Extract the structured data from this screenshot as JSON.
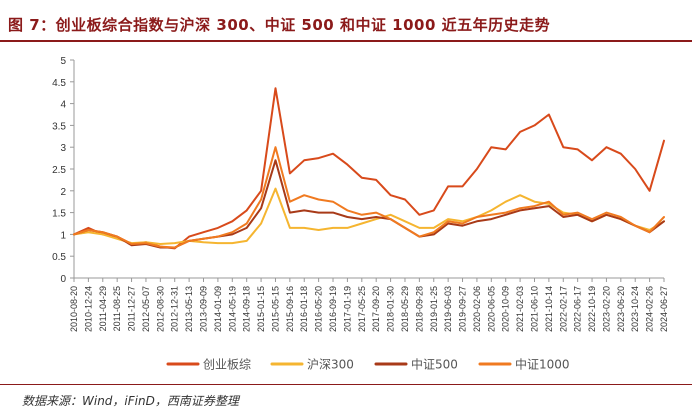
{
  "title": "图 7：创业板综合指数与沪深 300、中证 500 和中证 1000 近五年历史走势",
  "source": "数据来源：Wind，iFinD，西南证券整理",
  "chart_data": {
    "type": "line",
    "title": "",
    "xlabel": "",
    "ylabel": "",
    "ylim": [
      0,
      5
    ],
    "yticks": [
      0,
      0.5,
      1,
      1.5,
      2,
      2.5,
      3,
      3.5,
      4,
      4.5,
      5
    ],
    "grid": false,
    "legend_position": "bottom",
    "x_ticks": [
      "2010-08-20",
      "2010-12-24",
      "2011-04-29",
      "2011-08-25",
      "2011-12-27",
      "2012-05-07",
      "2012-08-30",
      "2012-12-31",
      "2013-05-13",
      "2013-09-09",
      "2014-01-09",
      "2014-05-19",
      "2014-09-18",
      "2015-01-15",
      "2015-05-15",
      "2015-09-16",
      "2016-01-18",
      "2016-05-20",
      "2016-09-19",
      "2017-01-19",
      "2017-05-25",
      "2017-09-20",
      "2018-01-30",
      "2018-05-29",
      "2018-09-28",
      "2019-01-25",
      "2019-06-03",
      "2019-09-27",
      "2020-02-06",
      "2020-06-05",
      "2020-10-09",
      "2021-02-03",
      "2021-06-10",
      "2021-10-14",
      "2022-02-17",
      "2022-06-17",
      "2022-10-19",
      "2023-02-20",
      "2023-06-20",
      "2023-10-24",
      "2024-02-26",
      "2024-06-27"
    ],
    "series": [
      {
        "name": "创业板综",
        "color": "#d84a1b",
        "values": [
          1.0,
          1.15,
          1.0,
          0.95,
          0.78,
          0.82,
          0.72,
          0.68,
          0.95,
          1.05,
          1.15,
          1.3,
          1.55,
          2.0,
          4.35,
          2.4,
          2.7,
          2.75,
          2.85,
          2.6,
          2.3,
          2.25,
          1.9,
          1.8,
          1.45,
          1.55,
          2.1,
          2.1,
          2.5,
          3.0,
          2.95,
          3.35,
          3.5,
          3.75,
          3.0,
          2.95,
          2.7,
          3.0,
          2.85,
          2.5,
          2.0,
          3.15
        ]
      },
      {
        "name": "沪深300",
        "color": "#f5b530",
        "values": [
          1.0,
          1.05,
          1.0,
          0.9,
          0.8,
          0.82,
          0.78,
          0.8,
          0.85,
          0.82,
          0.8,
          0.8,
          0.85,
          1.25,
          2.05,
          1.15,
          1.15,
          1.1,
          1.15,
          1.15,
          1.25,
          1.35,
          1.45,
          1.3,
          1.15,
          1.15,
          1.35,
          1.3,
          1.4,
          1.55,
          1.75,
          1.9,
          1.75,
          1.7,
          1.5,
          1.45,
          1.3,
          1.45,
          1.35,
          1.2,
          1.1,
          1.3
        ]
      },
      {
        "name": "中证500",
        "color": "#a83a18",
        "values": [
          1.0,
          1.1,
          1.05,
          0.95,
          0.75,
          0.78,
          0.7,
          0.7,
          0.85,
          0.9,
          0.95,
          1.0,
          1.15,
          1.6,
          2.7,
          1.5,
          1.55,
          1.5,
          1.5,
          1.4,
          1.35,
          1.4,
          1.35,
          1.15,
          0.95,
          1.0,
          1.25,
          1.2,
          1.3,
          1.35,
          1.45,
          1.55,
          1.6,
          1.65,
          1.4,
          1.45,
          1.3,
          1.45,
          1.35,
          1.2,
          1.05,
          1.3
        ]
      },
      {
        "name": "中证1000",
        "color": "#f07a20",
        "values": [
          1.0,
          1.1,
          1.05,
          0.95,
          0.78,
          0.8,
          0.72,
          0.7,
          0.85,
          0.9,
          0.95,
          1.05,
          1.25,
          1.8,
          3.0,
          1.75,
          1.9,
          1.8,
          1.75,
          1.55,
          1.45,
          1.5,
          1.35,
          1.15,
          0.95,
          1.05,
          1.3,
          1.25,
          1.4,
          1.45,
          1.5,
          1.6,
          1.65,
          1.75,
          1.45,
          1.5,
          1.35,
          1.5,
          1.4,
          1.2,
          1.05,
          1.4
        ]
      }
    ]
  }
}
